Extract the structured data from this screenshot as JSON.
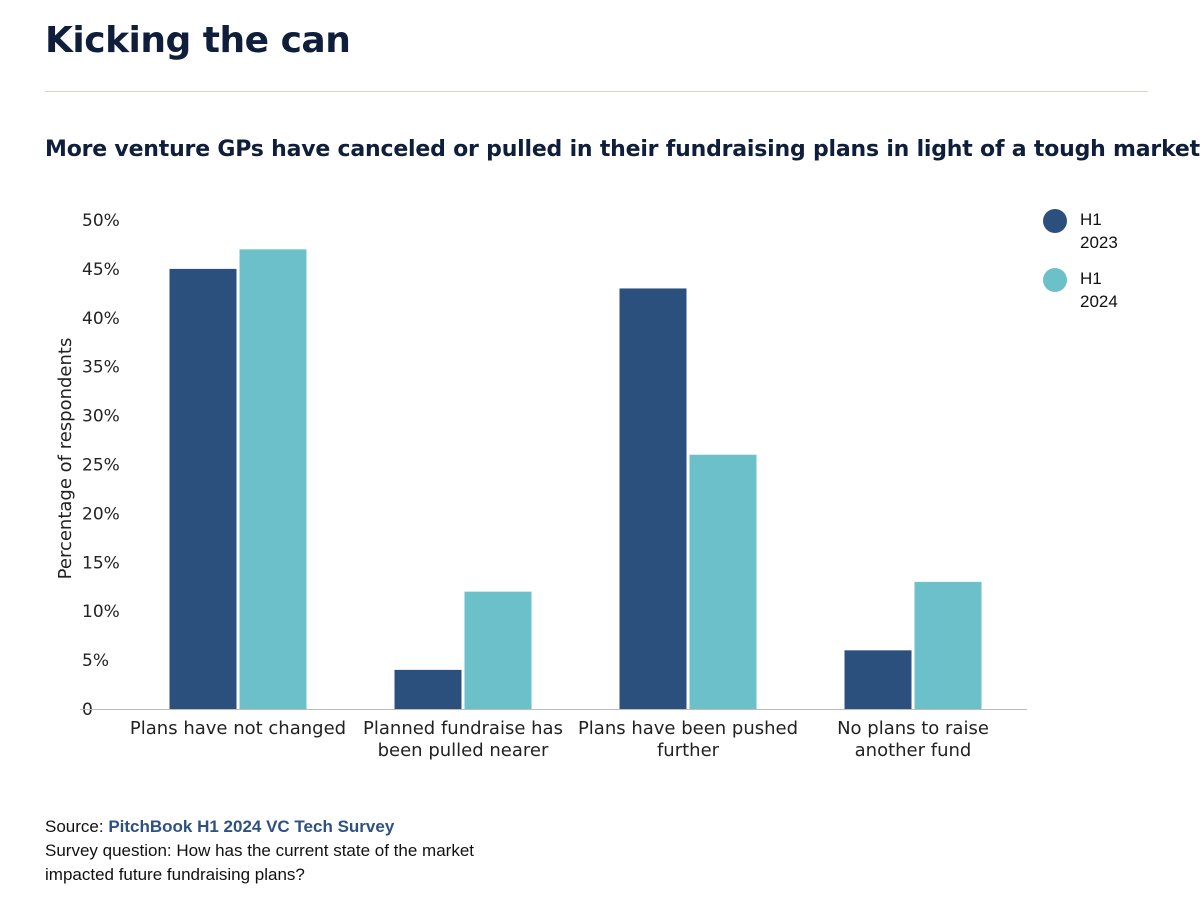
{
  "header": {
    "title": "Kicking the can",
    "subtitle": "More venture GPs have canceled or pulled in their fundraising plans in light of a tough market"
  },
  "chart_data": {
    "type": "bar",
    "categories": [
      [
        "Plans have not changed"
      ],
      [
        "Planned fundraise has",
        "been pulled nearer"
      ],
      [
        "Plans have been pushed",
        "further"
      ],
      [
        "No plans to raise",
        "another fund"
      ]
    ],
    "series": [
      {
        "name": "H1 2023",
        "legend_lines": [
          "H1",
          "2023"
        ],
        "color": "#2c507d",
        "values": [
          45,
          4,
          43,
          6
        ]
      },
      {
        "name": "H1 2024",
        "legend_lines": [
          "H1",
          "2024"
        ],
        "color": "#6bc0c9",
        "values": [
          47,
          12,
          26,
          13
        ]
      }
    ],
    "ylabel": "Percentage of respondents",
    "ylim": [
      0,
      50
    ],
    "yticks": [
      {
        "value": 0,
        "label": "0"
      },
      {
        "value": 5,
        "label": "5%"
      },
      {
        "value": 10,
        "label": "10%"
      },
      {
        "value": 15,
        "label": "15%"
      },
      {
        "value": 20,
        "label": "20%"
      },
      {
        "value": 25,
        "label": "25%"
      },
      {
        "value": 30,
        "label": "30%"
      },
      {
        "value": 35,
        "label": "35%"
      },
      {
        "value": 40,
        "label": "40%"
      },
      {
        "value": 45,
        "label": "45%"
      },
      {
        "value": 50,
        "label": "50%"
      }
    ],
    "grid": false,
    "legend_position": "top-right"
  },
  "footer": {
    "source_prefix": "Source: ",
    "source_name": "PitchBook H1 2024 VC Tech Survey",
    "question": "Survey question: How has the current state of the market impacted future fundraising plans?"
  }
}
